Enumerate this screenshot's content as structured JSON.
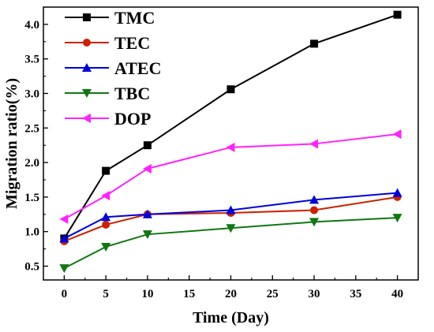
{
  "chart_data": {
    "type": "line",
    "xlabel": "Time (Day)",
    "ylabel": "Migration ratio(%)",
    "xlim": [
      -2.5,
      42.5
    ],
    "ylim": [
      0.3,
      4.25
    ],
    "xticks": [
      0,
      5,
      10,
      15,
      20,
      25,
      30,
      35,
      40
    ],
    "yticks": [
      0.5,
      1.0,
      1.5,
      2.0,
      2.5,
      3.0,
      3.5,
      4.0
    ],
    "xtick_labels": [
      "0",
      "5",
      "10",
      "15",
      "20",
      "25",
      "30",
      "35",
      "40"
    ],
    "ytick_labels": [
      "0.5",
      "1.0",
      "1.5",
      "2.0",
      "2.5",
      "3.0",
      "3.5",
      "4.0"
    ],
    "legend_position": "top-left",
    "grid": false,
    "x": [
      0,
      5,
      10,
      20,
      30,
      40
    ],
    "series": [
      {
        "name": "TMC",
        "color": "#000000",
        "marker": "square",
        "values": [
          0.9,
          1.88,
          2.25,
          3.06,
          3.72,
          4.14
        ]
      },
      {
        "name": "TEC",
        "color": "#cc2200",
        "marker": "circle",
        "values": [
          0.86,
          1.1,
          1.25,
          1.27,
          1.31,
          1.5
        ]
      },
      {
        "name": "ATEC",
        "color": "#0000dd",
        "marker": "triangle-up",
        "values": [
          0.9,
          1.21,
          1.25,
          1.31,
          1.46,
          1.56
        ]
      },
      {
        "name": "TBC",
        "color": "#117711",
        "marker": "triangle-down",
        "values": [
          0.47,
          0.78,
          0.96,
          1.05,
          1.14,
          1.2
        ]
      },
      {
        "name": "DOP",
        "color": "#ff22ff",
        "marker": "triangle-left",
        "values": [
          1.18,
          1.52,
          1.91,
          2.22,
          2.27,
          2.41
        ]
      }
    ]
  }
}
